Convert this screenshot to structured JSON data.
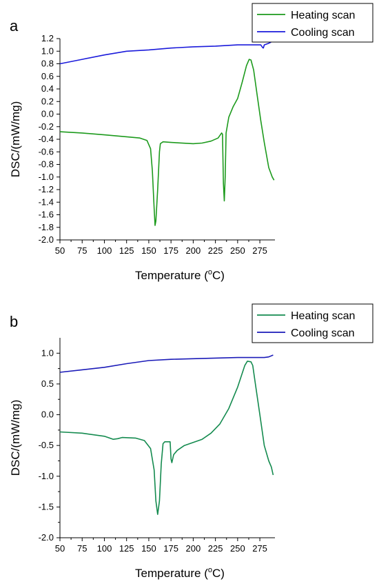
{
  "chart_data": [
    {
      "panel_label": "a",
      "type": "line",
      "xlabel_prefix": "Temperature (",
      "xlabel_sup": "o",
      "xlabel_suffix": "C)",
      "ylabel": "DSC/(mW/mg)",
      "xlim": [
        50,
        292
      ],
      "ylim": [
        -2.0,
        1.2
      ],
      "xticks": [
        50,
        75,
        100,
        125,
        150,
        175,
        200,
        225,
        250,
        275
      ],
      "yticks": [
        -2.0,
        -1.8,
        -1.6,
        -1.4,
        -1.2,
        -1.0,
        -0.8,
        -0.6,
        -0.4,
        -0.2,
        0.0,
        0.2,
        0.4,
        0.6,
        0.8,
        1.0,
        1.2
      ],
      "ytick_decimals": 1,
      "legend_position": "top-right",
      "series": [
        {
          "name": "Heating scan",
          "color": "#1c9a1c",
          "points": [
            [
              50,
              -0.28
            ],
            [
              75,
              -0.3
            ],
            [
              100,
              -0.33
            ],
            [
              125,
              -0.36
            ],
            [
              140,
              -0.38
            ],
            [
              148,
              -0.42
            ],
            [
              152,
              -0.55
            ],
            [
              154,
              -0.9
            ],
            [
              156,
              -1.5
            ],
            [
              157,
              -1.77
            ],
            [
              158,
              -1.7
            ],
            [
              160,
              -1.2
            ],
            [
              162,
              -0.6
            ],
            [
              163,
              -0.47
            ],
            [
              166,
              -0.44
            ],
            [
              175,
              -0.45
            ],
            [
              200,
              -0.47
            ],
            [
              210,
              -0.46
            ],
            [
              220,
              -0.43
            ],
            [
              228,
              -0.38
            ],
            [
              232,
              -0.3
            ],
            [
              233,
              -0.32
            ],
            [
              234,
              -1.1
            ],
            [
              235,
              -1.38
            ],
            [
              236,
              -1.0
            ],
            [
              237,
              -0.3
            ],
            [
              240,
              -0.05
            ],
            [
              245,
              0.12
            ],
            [
              250,
              0.25
            ],
            [
              255,
              0.5
            ],
            [
              260,
              0.77
            ],
            [
              263,
              0.87
            ],
            [
              265,
              0.86
            ],
            [
              268,
              0.7
            ],
            [
              272,
              0.3
            ],
            [
              276,
              -0.1
            ],
            [
              280,
              -0.45
            ],
            [
              285,
              -0.85
            ],
            [
              289,
              -1.0
            ],
            [
              291,
              -1.05
            ]
          ]
        },
        {
          "name": "Cooling scan",
          "color": "#1a1adb",
          "points": [
            [
              50,
              0.8
            ],
            [
              75,
              0.87
            ],
            [
              100,
              0.94
            ],
            [
              125,
              1.0
            ],
            [
              150,
              1.02
            ],
            [
              175,
              1.05
            ],
            [
              200,
              1.07
            ],
            [
              225,
              1.08
            ],
            [
              250,
              1.1
            ],
            [
              270,
              1.1
            ],
            [
              276,
              1.1
            ],
            [
              278,
              1.06
            ],
            [
              279,
              1.05
            ],
            [
              280,
              1.1
            ],
            [
              284,
              1.12
            ],
            [
              287,
              1.14
            ],
            [
              290,
              1.17
            ]
          ]
        }
      ]
    },
    {
      "panel_label": "b",
      "type": "line",
      "xlabel_prefix": "Temperature (",
      "xlabel_sup": "o",
      "xlabel_suffix": "C)",
      "ylabel": "DSC/(mW/mg)",
      "xlim": [
        50,
        292
      ],
      "ylim": [
        -2.0,
        1.25
      ],
      "xticks": [
        50,
        75,
        100,
        125,
        150,
        175,
        200,
        225,
        250,
        275
      ],
      "yticks": [
        -2.0,
        -1.5,
        -1.0,
        -0.5,
        0.0,
        0.5,
        1.0
      ],
      "ytick_decimals": 1,
      "legend_position": "top-right",
      "series": [
        {
          "name": "Heating scan",
          "color": "#138a4e",
          "points": [
            [
              50,
              -0.28
            ],
            [
              75,
              -0.3
            ],
            [
              100,
              -0.35
            ],
            [
              110,
              -0.4
            ],
            [
              115,
              -0.39
            ],
            [
              120,
              -0.37
            ],
            [
              135,
              -0.38
            ],
            [
              145,
              -0.42
            ],
            [
              152,
              -0.55
            ],
            [
              156,
              -0.9
            ],
            [
              158,
              -1.4
            ],
            [
              160,
              -1.62
            ],
            [
              162,
              -1.4
            ],
            [
              164,
              -0.8
            ],
            [
              166,
              -0.47
            ],
            [
              168,
              -0.44
            ],
            [
              174,
              -0.44
            ],
            [
              175,
              -0.72
            ],
            [
              176,
              -0.78
            ],
            [
              178,
              -0.65
            ],
            [
              182,
              -0.58
            ],
            [
              190,
              -0.5
            ],
            [
              200,
              -0.45
            ],
            [
              210,
              -0.4
            ],
            [
              220,
              -0.3
            ],
            [
              230,
              -0.15
            ],
            [
              240,
              0.1
            ],
            [
              250,
              0.45
            ],
            [
              258,
              0.8
            ],
            [
              261,
              0.87
            ],
            [
              265,
              0.86
            ],
            [
              267,
              0.8
            ],
            [
              270,
              0.5
            ],
            [
              275,
              0.0
            ],
            [
              280,
              -0.5
            ],
            [
              285,
              -0.75
            ],
            [
              288,
              -0.85
            ],
            [
              290,
              -0.98
            ]
          ]
        },
        {
          "name": "Cooling scan",
          "color": "#1a1ab8",
          "points": [
            [
              50,
              0.69
            ],
            [
              75,
              0.73
            ],
            [
              100,
              0.77
            ],
            [
              125,
              0.83
            ],
            [
              150,
              0.88
            ],
            [
              175,
              0.9
            ],
            [
              200,
              0.91
            ],
            [
              225,
              0.92
            ],
            [
              250,
              0.93
            ],
            [
              270,
              0.93
            ],
            [
              280,
              0.93
            ],
            [
              285,
              0.94
            ],
            [
              290,
              0.97
            ]
          ]
        }
      ]
    }
  ]
}
